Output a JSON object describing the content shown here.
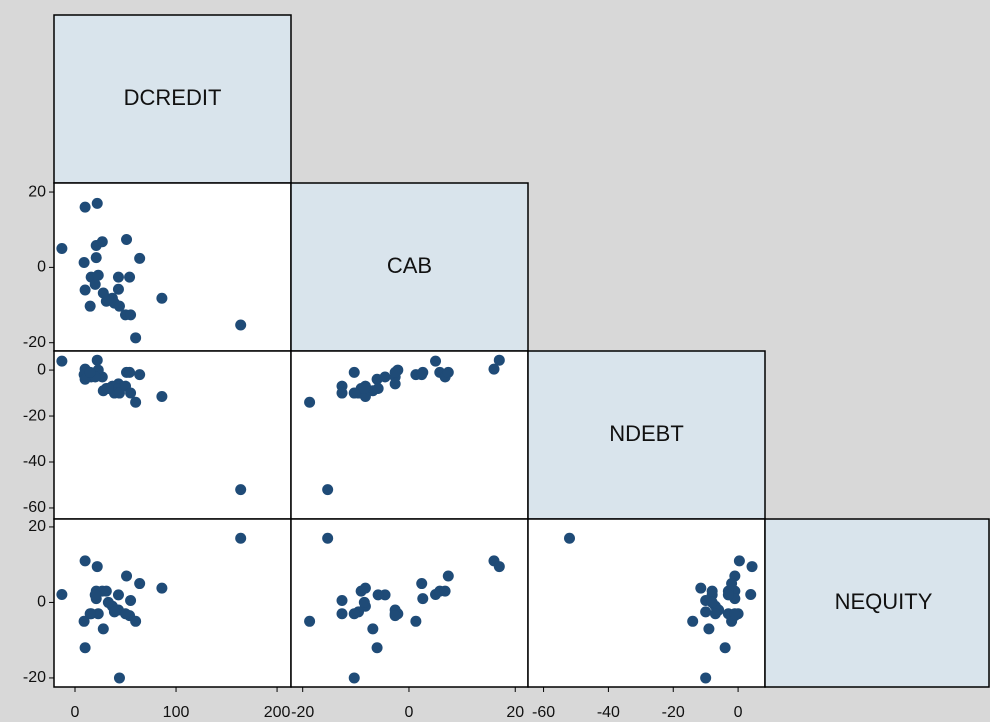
{
  "chart_data": {
    "type": "scatter_matrix",
    "color": "#1f4b77",
    "variables": [
      {
        "name": "DCREDIT",
        "lim": [
          -20.8,
          213.8
        ],
        "ticks": [
          0,
          100,
          200
        ],
        "values": [
          -13,
          10,
          22,
          9,
          21,
          27,
          51,
          64,
          21,
          16,
          23,
          43,
          54,
          10,
          20,
          28,
          37,
          43,
          31,
          39,
          15,
          44,
          50,
          55,
          86,
          60,
          164,
          33
        ]
      },
      {
        "name": "CAB",
        "lim": [
          -22.2,
          22.4
        ],
        "ticks": [
          -20,
          0,
          20
        ],
        "values": [
          5,
          16,
          17,
          1.3,
          5.8,
          6.8,
          7.4,
          2.4,
          2.6,
          -2.6,
          -2.1,
          -2.6,
          -2.6,
          -6,
          -4.5,
          -6.8,
          -8.2,
          -5.8,
          -9,
          -9.5,
          -10.3,
          -10.3,
          -12.6,
          -12.6,
          -8.2,
          -18.7,
          -15.3,
          -8.4
        ]
      },
      {
        "name": "NDEBT",
        "lim": [
          -64.8,
          8.3
        ],
        "ticks": [
          -60,
          -40,
          -20,
          0
        ],
        "values": [
          3.9,
          0.4,
          4.3,
          -2,
          -1,
          -3,
          -1,
          -2,
          -1,
          -3,
          0,
          -6,
          -1,
          -4,
          -3,
          -9,
          -7,
          -8,
          -8,
          -10,
          -1,
          -10,
          -7,
          -10,
          -11.5,
          -14,
          -52,
          -8
        ]
      },
      {
        "name": "NEQUITY",
        "lim": [
          -22.4,
          22.1
        ],
        "ticks": [
          -20,
          0,
          20
        ],
        "values": [
          2.1,
          11,
          9.5,
          -5,
          3,
          3,
          7,
          5,
          1,
          -3,
          -3,
          -2,
          -3.5,
          -12,
          2,
          -7,
          -1,
          2,
          3,
          -2.5,
          -3,
          -20,
          -3,
          0.5,
          3.8,
          -5,
          17,
          0
        ]
      }
    ]
  }
}
